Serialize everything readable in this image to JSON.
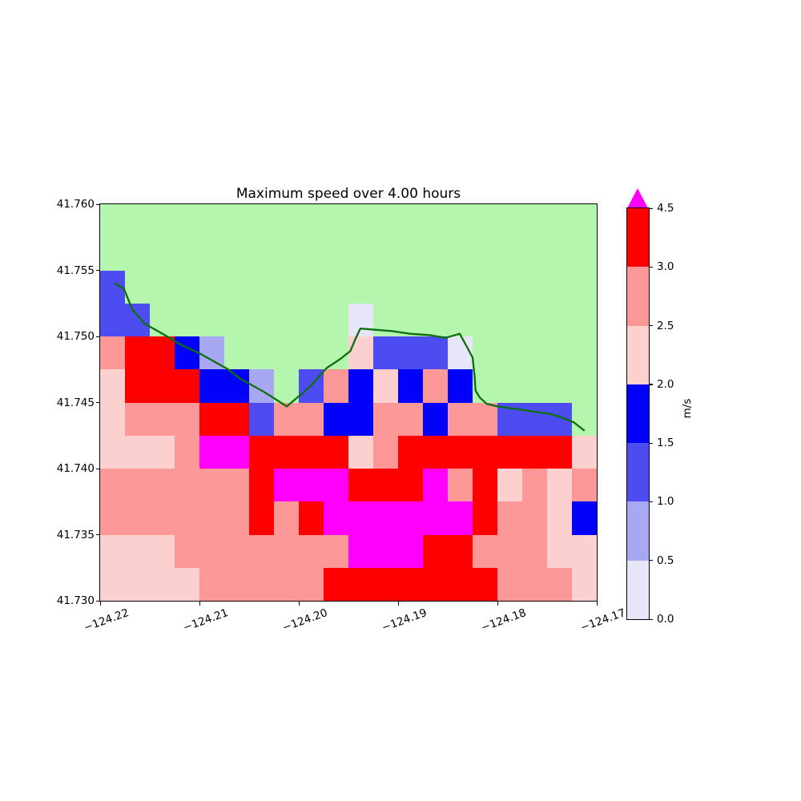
{
  "chart_data": {
    "type": "heatmap",
    "title": "Maximum speed over 4.00 hours",
    "x_ticks": [
      "−124.22",
      "−124.21",
      "−124.20",
      "−124.19",
      "−124.18",
      "−124.17"
    ],
    "y_ticks": [
      "41.760",
      "41.755",
      "41.750",
      "41.745",
      "41.740",
      "41.735",
      "41.730"
    ],
    "x_range": [
      -124.22,
      -124.17
    ],
    "y_range": [
      41.73,
      41.76
    ],
    "grid_shape": [
      12,
      20
    ],
    "palette": {
      "G": "#b5f6ae",
      "L0": "#e6e6f8",
      "L1": "#a8a8f2",
      "L2": "#4c4cf0",
      "L3": "#0202f8",
      "P0": "#fdd0d0",
      "P1": "#fc9898",
      "R": "#ff0000",
      "M": "#ff00ff"
    },
    "value_bins": {
      "G": "masked / land (no data)",
      "L0": "0.0–0.5",
      "L1": "0.5–1.0",
      "L2": "1.0–1.5",
      "L3": "1.5–2.0",
      "P0": "2.0–2.5",
      "P1": "2.5–3.0",
      "R": "3.0–4.5",
      "M": "> 4.5"
    },
    "grid": [
      "G G G G G G G G G G G G G G G G G G G G",
      "G G G G G G G G G G G G G G G G G G G G",
      "L2 G G G G G G G G G G G G G G G G G G G",
      "L2 L2 G G G G G G G G L0 G G G G G G G G G",
      "P1 R R L3 L1 G G G G G P0 L2 L2 L2 L0 G G G G G",
      "P0 R R R L3 L3 L1 G L2 P1 L3 P0 L3 P1 L3 G G G G G",
      "P0 P1 P1 P1 R R L2 P1 P1 L3 L3 P1 P1 L3 P1 P1 L2 L2 L2 G",
      "P0 P0 P0 P1 M M R R R R P0 P1 R R R R R R R P0",
      "P1 P1 P1 P1 P1 P1 R M M M R R R M P1 R P0 P1 P0 P1",
      "P1 P1 P1 P1 P1 P1 R P1 R M M M M M M R P1 P1 P0 L3",
      "P0 P0 P0 P1 P1 P1 P1 P1 P1 P1 M M M R R P1 P1 P1 P0 P0",
      "P0 P0 P0 P0 P1 P1 P1 P1 P1 R R R R R R R P1 P1 P1 P0"
    ],
    "coastline_color": "#0c6e0c",
    "coastline": [
      [
        -124.2185,
        41.754
      ],
      [
        -124.2176,
        41.7536
      ],
      [
        -124.2168,
        41.7521
      ],
      [
        -124.2156,
        41.751
      ],
      [
        -124.2135,
        41.7501
      ],
      [
        -124.2117,
        41.7493
      ],
      [
        -124.2102,
        41.7488
      ],
      [
        -124.209,
        41.7483
      ],
      [
        -124.2071,
        41.7475
      ],
      [
        -124.2059,
        41.7468
      ],
      [
        -124.2035,
        41.7458
      ],
      [
        -124.2012,
        41.7447
      ],
      [
        -124.199,
        41.7461
      ],
      [
        -124.1972,
        41.7476
      ],
      [
        -124.1958,
        41.7483
      ],
      [
        -124.1948,
        41.7489
      ],
      [
        -124.1943,
        41.7498
      ],
      [
        -124.1938,
        41.7506
      ],
      [
        -124.1923,
        41.7505
      ],
      [
        -124.1906,
        41.7504
      ],
      [
        -124.1888,
        41.7502
      ],
      [
        -124.1869,
        41.7501
      ],
      [
        -124.1852,
        41.7499
      ],
      [
        -124.1838,
        41.7502
      ],
      [
        -124.1832,
        41.7494
      ],
      [
        -124.1825,
        41.7484
      ],
      [
        -124.1823,
        41.747
      ],
      [
        -124.1822,
        41.7459
      ],
      [
        -124.1818,
        41.7454
      ],
      [
        -124.1811,
        41.7449
      ],
      [
        -124.18,
        41.7447
      ],
      [
        -124.1781,
        41.7445
      ],
      [
        -124.1762,
        41.7443
      ],
      [
        -124.1745,
        41.7441
      ],
      [
        -124.1733,
        41.7438
      ],
      [
        -124.1723,
        41.7435
      ],
      [
        -124.1713,
        41.7429
      ]
    ],
    "colorbar": {
      "label": "m/s",
      "ticks": [
        "0.0",
        "0.5",
        "1.0",
        "1.5",
        "2.0",
        "2.5",
        "3.0",
        "4.5"
      ],
      "segments_bottom_to_top": [
        "L0",
        "L1",
        "L2",
        "L3",
        "P0",
        "P1",
        "R"
      ],
      "extend_over": "M"
    }
  }
}
